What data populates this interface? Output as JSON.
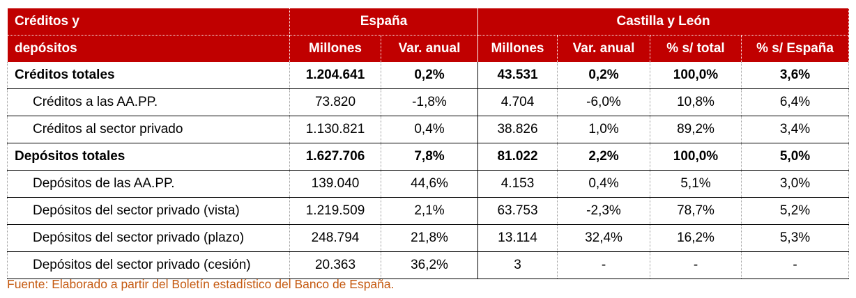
{
  "header": {
    "row_label_line1": "Créditos y",
    "row_label_line2": "depósitos",
    "group_espana": "España",
    "group_cyl": "Castilla y León",
    "columns": [
      "Millones",
      "Var. anual",
      "Millones",
      "Var. anual",
      "% s/ total",
      "% s/ España"
    ]
  },
  "rows": [
    {
      "label": "Créditos totales",
      "values": [
        "1.204.641",
        "0,2%",
        "43.531",
        "0,2%",
        "100,0%",
        "3,6%"
      ]
    },
    {
      "label": "Créditos a las AA.PP.",
      "values": [
        "73.820",
        "-1,8%",
        "4.704",
        "-6,0%",
        "10,8%",
        "6,4%"
      ]
    },
    {
      "label": "Créditos al sector privado",
      "values": [
        "1.130.821",
        "0,4%",
        "38.826",
        "1,0%",
        "89,2%",
        "3,4%"
      ]
    },
    {
      "label": "Depósitos totales",
      "values": [
        "1.627.706",
        "7,8%",
        "81.022",
        "2,2%",
        "100,0%",
        "5,0%"
      ]
    },
    {
      "label": "Depósitos de las AA.PP.",
      "values": [
        "139.040",
        "44,6%",
        "4.153",
        "0,4%",
        "5,1%",
        "3,0%"
      ]
    },
    {
      "label": "Depósitos del sector privado (vista)",
      "values": [
        "1.219.509",
        "2,1%",
        "63.753",
        "-2,3%",
        "78,7%",
        "5,2%"
      ]
    },
    {
      "label": "Depósitos del sector privado (plazo)",
      "values": [
        "248.794",
        "21,8%",
        "13.114",
        "32,4%",
        "16,2%",
        "5,3%"
      ]
    },
    {
      "label": "Depósitos del sector privado (cesión)",
      "values": [
        "20.363",
        "36,2%",
        "3",
        "-",
        "-",
        "-"
      ]
    }
  ],
  "source": "Fuente: Elaborado a partir del Boletín estadístico del Banco de España.",
  "colors": {
    "header_bg": "#c00000",
    "header_text": "#ffffff",
    "source_text": "#c55a11"
  }
}
